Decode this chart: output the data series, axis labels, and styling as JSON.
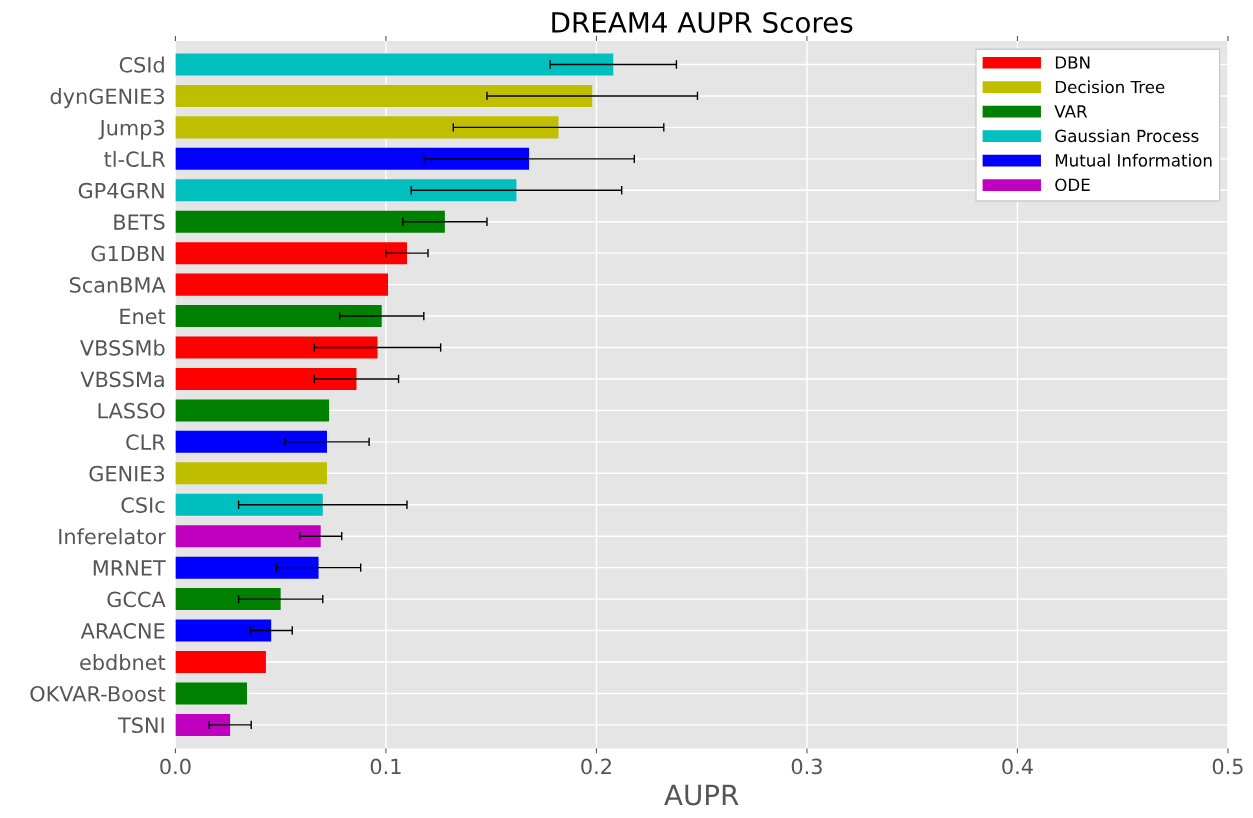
{
  "chart_data": {
    "type": "bar",
    "orientation": "horizontal",
    "title": "DREAM4 AUPR Scores",
    "xlabel": "AUPR",
    "categories": [
      "CSId",
      "dynGENIE3",
      "Jump3",
      "tl-CLR",
      "GP4GRN",
      "BETS",
      "G1DBN",
      "ScanBMA",
      "Enet",
      "VBSSMb",
      "VBSSMa",
      "LASSO",
      "CLR",
      "GENIE3",
      "CSIc",
      "Inferelator",
      "MRNET",
      "GCCA",
      "ARACNE",
      "ebdbnet",
      "OKVAR-Boost",
      "TSNI"
    ],
    "series": [
      {
        "name": "DBN",
        "color": "#ff0000",
        "values": [
          null,
          null,
          null,
          null,
          null,
          null,
          0.11,
          0.101,
          null,
          0.096,
          0.086,
          null,
          null,
          null,
          null,
          null,
          null,
          null,
          null,
          0.043,
          null,
          null
        ],
        "errors": [
          null,
          null,
          null,
          null,
          null,
          null,
          0.01,
          null,
          null,
          0.03,
          0.02,
          null,
          null,
          null,
          null,
          null,
          null,
          null,
          null,
          null,
          null,
          null
        ]
      },
      {
        "name": "Decision Tree",
        "color": "#bfbf00",
        "values": [
          null,
          0.198,
          0.182,
          null,
          null,
          null,
          null,
          null,
          null,
          null,
          null,
          null,
          null,
          0.072,
          null,
          null,
          null,
          null,
          null,
          null,
          null,
          null
        ],
        "errors": [
          null,
          0.05,
          0.05,
          null,
          null,
          null,
          null,
          null,
          null,
          null,
          null,
          null,
          null,
          null,
          null,
          null,
          null,
          null,
          null,
          null,
          null,
          null
        ]
      },
      {
        "name": "VAR",
        "color": "#008000",
        "values": [
          null,
          null,
          null,
          null,
          null,
          0.128,
          null,
          null,
          0.098,
          null,
          null,
          0.073,
          null,
          null,
          null,
          null,
          null,
          0.05,
          null,
          null,
          0.034,
          null
        ],
        "errors": [
          null,
          null,
          null,
          null,
          null,
          0.02,
          null,
          null,
          0.02,
          null,
          null,
          null,
          null,
          null,
          null,
          null,
          null,
          0.02,
          null,
          null,
          null,
          null
        ]
      },
      {
        "name": "Gaussian Process",
        "color": "#00bfbf",
        "values": [
          0.208,
          null,
          null,
          null,
          0.162,
          null,
          null,
          null,
          null,
          null,
          null,
          null,
          null,
          null,
          0.07,
          null,
          null,
          null,
          null,
          null,
          null,
          null
        ],
        "errors": [
          0.03,
          null,
          null,
          null,
          0.05,
          null,
          null,
          null,
          null,
          null,
          null,
          null,
          null,
          null,
          0.04,
          null,
          null,
          null,
          null,
          null,
          null,
          null
        ]
      },
      {
        "name": "Mutual Information",
        "color": "#0000ff",
        "values": [
          null,
          null,
          null,
          0.168,
          null,
          null,
          null,
          null,
          null,
          null,
          null,
          null,
          0.072,
          null,
          null,
          null,
          0.068,
          null,
          0.0455,
          null,
          null,
          null
        ],
        "errors": [
          null,
          null,
          null,
          0.05,
          null,
          null,
          null,
          null,
          null,
          null,
          null,
          null,
          0.02,
          null,
          null,
          null,
          0.02,
          null,
          0.01,
          null,
          null,
          null
        ]
      },
      {
        "name": "ODE",
        "color": "#bf00bf",
        "values": [
          null,
          null,
          null,
          null,
          null,
          null,
          null,
          null,
          null,
          null,
          null,
          null,
          null,
          null,
          null,
          0.069,
          null,
          null,
          null,
          null,
          null,
          0.026
        ],
        "errors": [
          null,
          null,
          null,
          null,
          null,
          null,
          null,
          null,
          null,
          null,
          null,
          null,
          null,
          null,
          null,
          0.01,
          null,
          null,
          null,
          null,
          null,
          0.01
        ]
      }
    ],
    "xlim": [
      0,
      0.5
    ],
    "xticks": [
      {
        "value": 0,
        "label": "0.0"
      },
      0.1,
      0.2,
      0.3,
      0.4,
      0.5
    ],
    "grid": true,
    "legend": "top right"
  }
}
